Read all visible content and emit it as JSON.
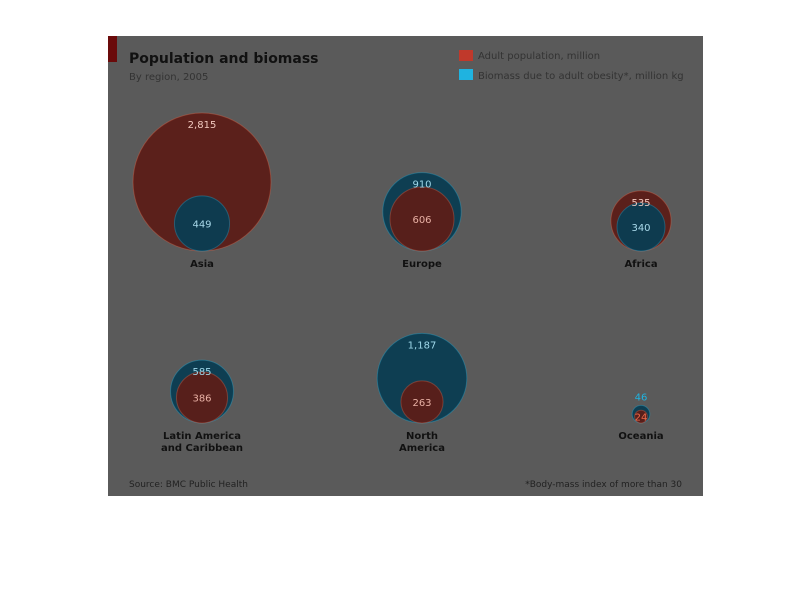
{
  "title": "Population and biomass",
  "subtitle": "By region, 2005",
  "legend": [
    {
      "label": "Adult population, million",
      "color": "#c0392b"
    },
    {
      "label": "Biomass due to adult obesity*, million kg",
      "color": "#1fb3e0"
    }
  ],
  "source": "Source: BMC Public Health",
  "footnote": "*Body-mass index of more than 30",
  "colors": {
    "background": "#5a5a5a",
    "population": "#5c1e18",
    "population_highlight": "#ef6a4a",
    "biomass": "#0b3d52",
    "biomass_highlight": "#1fb3e0",
    "accent": "#6a0a0a"
  },
  "chart_data": {
    "type": "bubble",
    "title": "Population and biomass",
    "subtitle": "By region, 2005",
    "series": [
      {
        "name": "Adult population, million",
        "key": "population"
      },
      {
        "name": "Biomass due to adult obesity*, million kg",
        "key": "biomass"
      }
    ],
    "regions": [
      {
        "name": "Asia",
        "label_lines": [
          "Asia"
        ],
        "population": 2815,
        "biomass": 449
      },
      {
        "name": "Europe",
        "label_lines": [
          "Europe"
        ],
        "population": 606,
        "biomass": 910
      },
      {
        "name": "Africa",
        "label_lines": [
          "Africa"
        ],
        "population": 535,
        "biomass": 340
      },
      {
        "name": "Latin America and Caribbean",
        "label_lines": [
          "Latin America",
          "and Caribbean"
        ],
        "population": 386,
        "biomass": 585
      },
      {
        "name": "North America",
        "label_lines": [
          "North",
          "America"
        ],
        "population": 263,
        "biomass": 1187
      },
      {
        "name": "Oceania",
        "label_lines": [
          "Oceania"
        ],
        "population": 24,
        "biomass": 46
      }
    ]
  }
}
